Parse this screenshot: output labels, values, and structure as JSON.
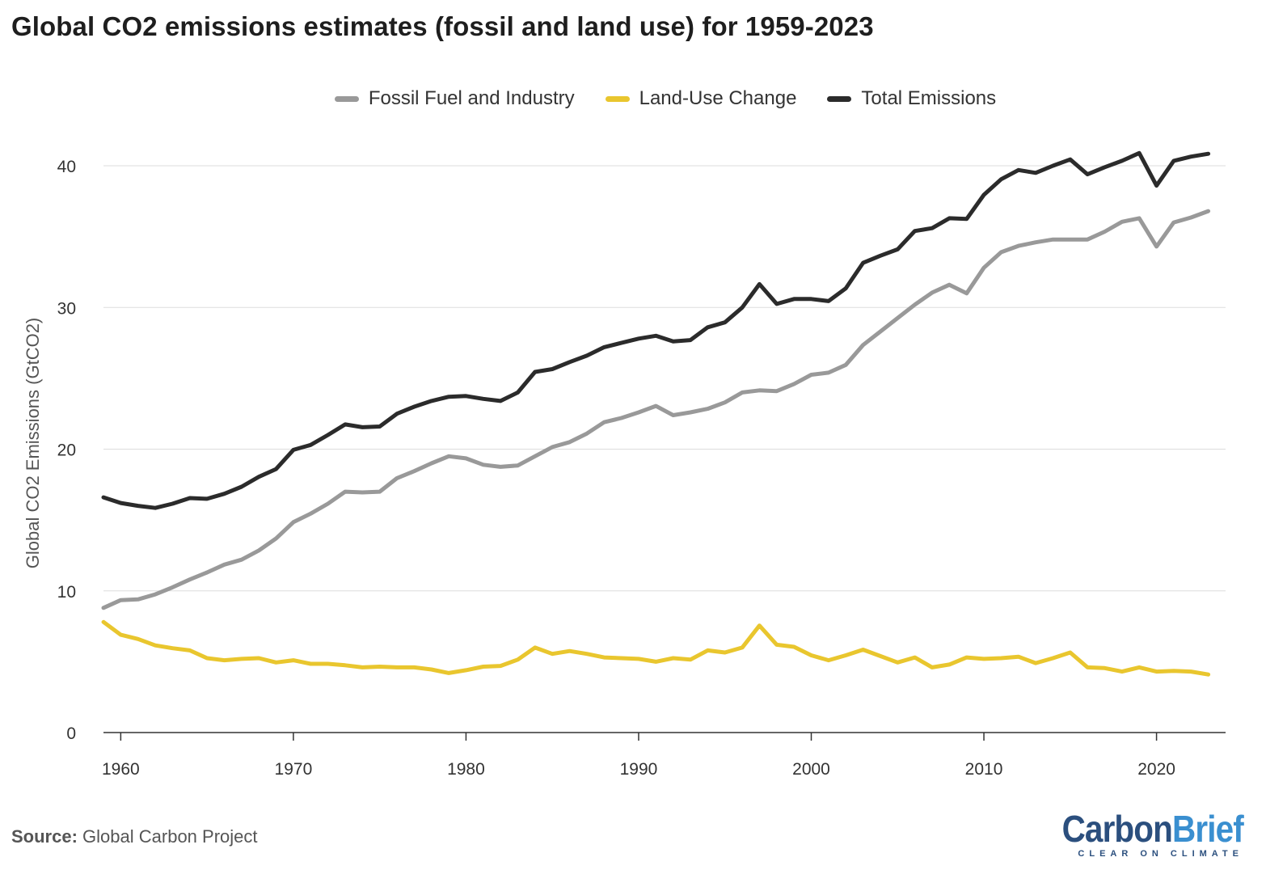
{
  "title": "Global CO2 emissions estimates (fossil and land use) for 1959-2023",
  "legend": [
    {
      "label": "Fossil Fuel and Industry",
      "color": "#999999"
    },
    {
      "label": "Land-Use Change",
      "color": "#e9c62e"
    },
    {
      "label": "Total Emissions",
      "color": "#2b2b2b"
    }
  ],
  "source_label": "Source:",
  "source_text": "Global Carbon Project",
  "logo": {
    "carbon": "Carbon",
    "brief": "Brief",
    "tagline": "CLEAR ON CLIMATE"
  },
  "chart_data": {
    "type": "line",
    "title": "Global CO2 emissions estimates (fossil and land use) for 1959-2023",
    "ylabel": "Global CO2 Emissions (GtCO2)",
    "xlabel": "",
    "xlim": [
      1959,
      2024
    ],
    "ylim": [
      0,
      42
    ],
    "x_ticks": [
      1960,
      1970,
      1980,
      1990,
      2000,
      2010,
      2020
    ],
    "y_ticks": [
      0,
      10,
      20,
      30,
      40
    ],
    "grid": "horizontal",
    "legend_position": "top-center",
    "x": [
      1959,
      1960,
      1961,
      1962,
      1963,
      1964,
      1965,
      1966,
      1967,
      1968,
      1969,
      1970,
      1971,
      1972,
      1973,
      1974,
      1975,
      1976,
      1977,
      1978,
      1979,
      1980,
      1981,
      1982,
      1983,
      1984,
      1985,
      1986,
      1987,
      1988,
      1989,
      1990,
      1991,
      1992,
      1993,
      1994,
      1995,
      1996,
      1997,
      1998,
      1999,
      2000,
      2001,
      2002,
      2003,
      2004,
      2005,
      2006,
      2007,
      2008,
      2009,
      2010,
      2011,
      2012,
      2013,
      2014,
      2015,
      2016,
      2017,
      2018,
      2019,
      2020,
      2021,
      2022,
      2023
    ],
    "series": [
      {
        "name": "Fossil Fuel and Industry",
        "color": "#999999",
        "values": [
          8.8,
          9.35,
          9.4,
          9.75,
          10.25,
          10.8,
          11.3,
          11.85,
          12.2,
          12.85,
          13.7,
          14.85,
          15.45,
          16.15,
          17.0,
          16.95,
          17.0,
          17.95,
          18.45,
          19.0,
          19.5,
          19.35,
          18.9,
          18.75,
          18.85,
          19.5,
          20.15,
          20.5,
          21.1,
          21.9,
          22.2,
          22.6,
          23.05,
          22.4,
          22.6,
          22.85,
          23.3,
          24.0,
          24.15,
          24.1,
          24.6,
          25.25,
          25.4,
          25.95,
          27.35,
          28.3,
          29.25,
          30.2,
          31.05,
          31.6,
          31.0,
          32.8,
          33.9,
          34.35,
          34.6,
          34.8,
          34.8,
          34.8,
          35.35,
          36.05,
          36.3,
          34.3,
          36.0,
          36.35,
          36.8
        ]
      },
      {
        "name": "Land-Use Change",
        "color": "#e9c62e",
        "values": [
          7.8,
          6.9,
          6.6,
          6.15,
          5.95,
          5.8,
          5.25,
          5.1,
          5.2,
          5.25,
          4.95,
          5.1,
          4.85,
          4.85,
          4.75,
          4.6,
          4.65,
          4.6,
          4.6,
          4.45,
          4.2,
          4.4,
          4.65,
          4.7,
          5.15,
          6.0,
          5.55,
          5.75,
          5.55,
          5.3,
          5.25,
          5.2,
          5.0,
          5.25,
          5.15,
          5.8,
          5.65,
          6.0,
          7.55,
          6.2,
          6.05,
          5.45,
          5.1,
          5.45,
          5.85,
          5.4,
          4.95,
          5.3,
          4.6,
          4.8,
          5.3,
          5.2,
          5.25,
          5.35,
          4.9,
          5.25,
          5.65,
          4.6,
          4.55,
          4.3,
          4.6,
          4.3,
          4.35,
          4.3,
          4.1
        ]
      },
      {
        "name": "Total Emissions",
        "color": "#2b2b2b",
        "values": [
          16.6,
          16.2,
          16.0,
          15.85,
          16.15,
          16.55,
          16.5,
          16.85,
          17.35,
          18.05,
          18.6,
          19.95,
          20.3,
          21.0,
          21.75,
          21.55,
          21.6,
          22.5,
          23.0,
          23.4,
          23.7,
          23.75,
          23.55,
          23.4,
          24.0,
          25.45,
          25.65,
          26.15,
          26.6,
          27.2,
          27.5,
          27.8,
          28.0,
          27.6,
          27.7,
          28.6,
          28.95,
          30.0,
          31.65,
          30.25,
          30.6,
          30.6,
          30.45,
          31.35,
          33.15,
          33.65,
          34.1,
          35.4,
          35.6,
          36.3,
          36.25,
          37.95,
          39.05,
          39.7,
          39.5,
          40.0,
          40.45,
          39.4,
          39.9,
          40.35,
          40.9,
          38.6,
          40.35,
          40.65,
          40.85
        ]
      }
    ]
  }
}
